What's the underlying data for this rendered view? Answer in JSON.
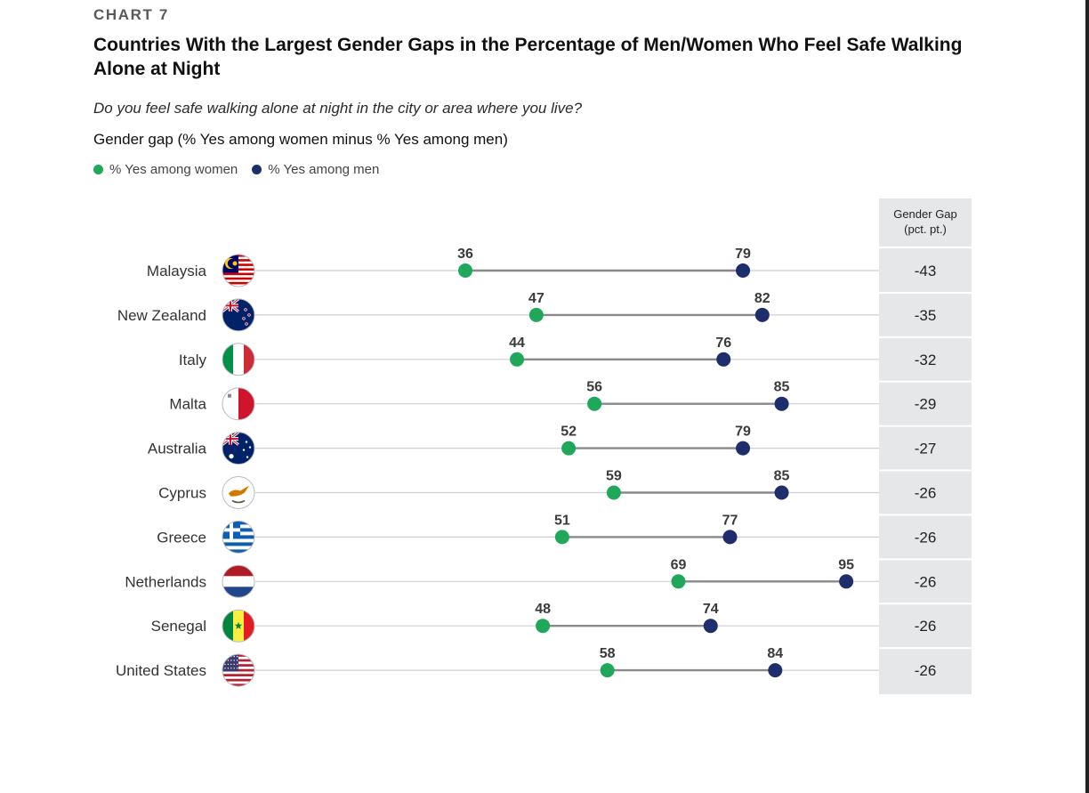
{
  "header": {
    "kicker": "CHART 7",
    "title": "Countries With the Largest Gender Gaps in the Percentage of Men/Women Who Feel Safe Walking Alone at Night",
    "question": "Do you feel safe walking alone at night in the city or area where you live?",
    "metric": "Gender gap (% Yes among women minus % Yes among men)"
  },
  "legend": [
    {
      "label": "% Yes among women",
      "color": "#1fa75a"
    },
    {
      "label": "% Yes among men",
      "color": "#1e2d6b"
    }
  ],
  "chart_data": {
    "type": "dumbbell",
    "title": "Countries With the Largest Gender Gaps in the Percentage of Men/Women Who Feel Safe Walking Alone at Night",
    "subtitle": "Do you feel safe walking alone at night in the city or area where you live?",
    "xlabel": "",
    "ylabel": "",
    "xlim": [
      0,
      100
    ],
    "grid": false,
    "legend_position": "top-left",
    "gap_column_header": [
      "Gender Gap",
      "(pct. pt.)"
    ],
    "categories": [
      "Malaysia",
      "New Zealand",
      "Italy",
      "Malta",
      "Australia",
      "Cyprus",
      "Greece",
      "Netherlands",
      "Senegal",
      "United States"
    ],
    "flags": [
      "malaysia-flag",
      "new-zealand-flag",
      "italy-flag",
      "malta-flag",
      "australia-flag",
      "cyprus-flag",
      "greece-flag",
      "netherlands-flag",
      "senegal-flag",
      "united-states-flag"
    ],
    "series": [
      {
        "name": "% Yes among women",
        "color": "#1fa75a",
        "values": [
          36,
          47,
          44,
          56,
          52,
          59,
          51,
          69,
          48,
          58
        ]
      },
      {
        "name": "% Yes among men",
        "color": "#1e2d6b",
        "values": [
          79,
          82,
          76,
          85,
          79,
          85,
          77,
          95,
          74,
          84
        ]
      }
    ],
    "gap": [
      -43,
      -35,
      -32,
      -29,
      -27,
      -26,
      -26,
      -26,
      -26,
      -26
    ]
  }
}
